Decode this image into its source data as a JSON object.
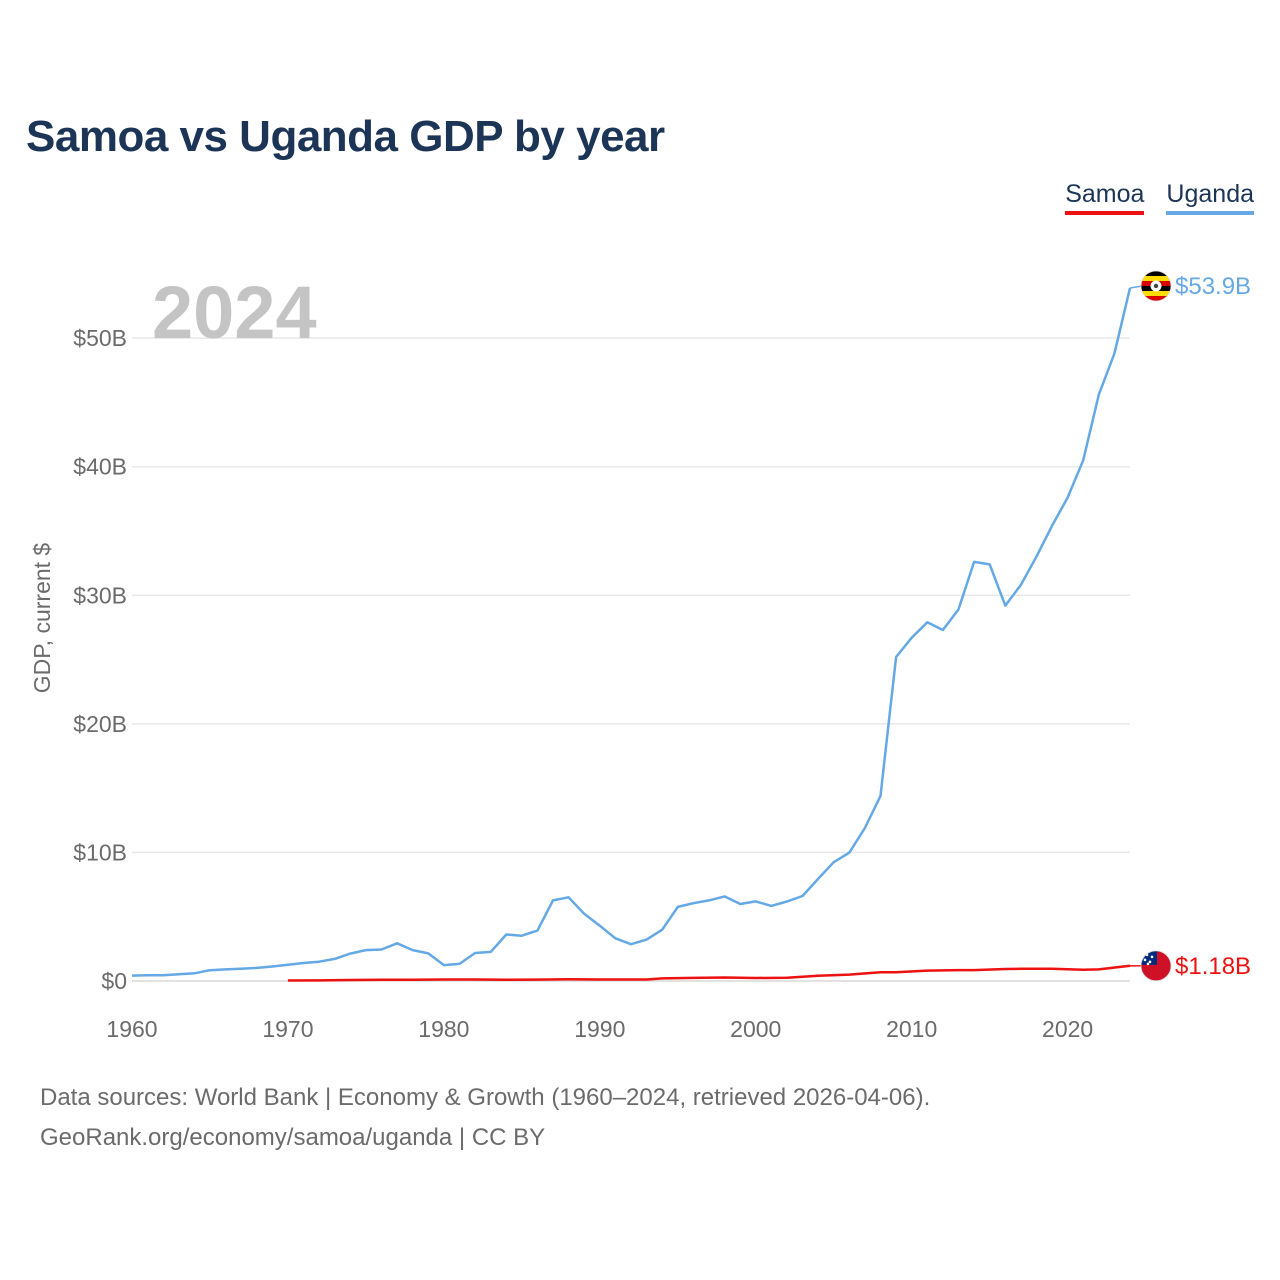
{
  "title": "Samoa vs Uganda GDP by year",
  "legend": [
    {
      "label": "Samoa",
      "color": "#ee1111"
    },
    {
      "label": "Uganda",
      "color": "#64a8e6"
    }
  ],
  "source": {
    "line1": "Data sources: World Bank | Economy & Growth (1960–2024, retrieved 2026-04-06).",
    "line2": "GeoRank.org/economy/samoa/uganda | CC BY"
  },
  "chart_data": {
    "type": "line",
    "title": "Samoa vs Uganda GDP by year",
    "ylabel": "GDP, current $",
    "xlabel": "",
    "year_label": "2024",
    "xlim": [
      1960,
      2024
    ],
    "ylim": [
      0,
      55
    ],
    "units": "billions of current US$",
    "x_ticks": [
      {
        "value": 1960,
        "label": "1960"
      },
      {
        "value": 1970,
        "label": "1970"
      },
      {
        "value": 1980,
        "label": "1980"
      },
      {
        "value": 1990,
        "label": "1990"
      },
      {
        "value": 2000,
        "label": "2000"
      },
      {
        "value": 2010,
        "label": "2010"
      },
      {
        "value": 2020,
        "label": "2020"
      }
    ],
    "y_ticks": [
      {
        "value": 0,
        "label": "$0"
      },
      {
        "value": 10,
        "label": "$10B"
      },
      {
        "value": 20,
        "label": "$20B"
      },
      {
        "value": 30,
        "label": "$30B"
      },
      {
        "value": 40,
        "label": "$40B"
      },
      {
        "value": 50,
        "label": "$50B"
      }
    ],
    "series": [
      {
        "name": "Uganda",
        "color": "#64a8e6",
        "end_label": "$53.9B",
        "flag_icon": "uganda-flag-icon",
        "x": [
          1960,
          1961,
          1962,
          1963,
          1964,
          1965,
          1966,
          1967,
          1968,
          1969,
          1970,
          1971,
          1972,
          1973,
          1974,
          1975,
          1976,
          1977,
          1978,
          1979,
          1980,
          1981,
          1982,
          1983,
          1984,
          1985,
          1986,
          1987,
          1988,
          1989,
          1990,
          1991,
          1992,
          1993,
          1994,
          1995,
          1996,
          1997,
          1998,
          1999,
          2000,
          2001,
          2002,
          2003,
          2004,
          2005,
          2006,
          2007,
          2008,
          2009,
          2010,
          2011,
          2012,
          2013,
          2014,
          2015,
          2016,
          2017,
          2018,
          2019,
          2020,
          2021,
          2022,
          2023,
          2024
        ],
        "values": [
          0.42,
          0.44,
          0.45,
          0.52,
          0.6,
          0.84,
          0.9,
          0.95,
          1.02,
          1.13,
          1.26,
          1.4,
          1.5,
          1.72,
          2.13,
          2.4,
          2.45,
          2.93,
          2.4,
          2.15,
          1.24,
          1.33,
          2.18,
          2.26,
          3.62,
          3.52,
          3.92,
          6.27,
          6.51,
          5.23,
          4.3,
          3.32,
          2.86,
          3.22,
          3.99,
          5.76,
          6.05,
          6.27,
          6.58,
          5.99,
          6.19,
          5.84,
          6.18,
          6.61,
          7.94,
          9.24,
          9.98,
          11.9,
          14.4,
          25.2,
          26.7,
          27.9,
          27.3,
          28.9,
          32.6,
          32.4,
          29.2,
          30.8,
          33.0,
          35.4,
          37.6,
          40.5,
          45.6,
          48.8,
          53.9
        ]
      },
      {
        "name": "Samoa",
        "color": "#ee1111",
        "end_label": "$1.18B",
        "flag_icon": "samoa-flag-icon",
        "x": [
          1970,
          1972,
          1974,
          1976,
          1978,
          1980,
          1982,
          1984,
          1986,
          1988,
          1990,
          1992,
          1993,
          1994,
          1996,
          1998,
          2000,
          2002,
          2004,
          2006,
          2008,
          2009,
          2011,
          2013,
          2014,
          2016,
          2017,
          2019,
          2021,
          2022,
          2024
        ],
        "values": [
          0.04,
          0.05,
          0.08,
          0.09,
          0.1,
          0.12,
          0.12,
          0.1,
          0.11,
          0.13,
          0.12,
          0.12,
          0.12,
          0.2,
          0.24,
          0.27,
          0.23,
          0.26,
          0.41,
          0.5,
          0.68,
          0.68,
          0.81,
          0.85,
          0.85,
          0.93,
          0.95,
          0.96,
          0.88,
          0.9,
          1.18
        ]
      }
    ]
  }
}
